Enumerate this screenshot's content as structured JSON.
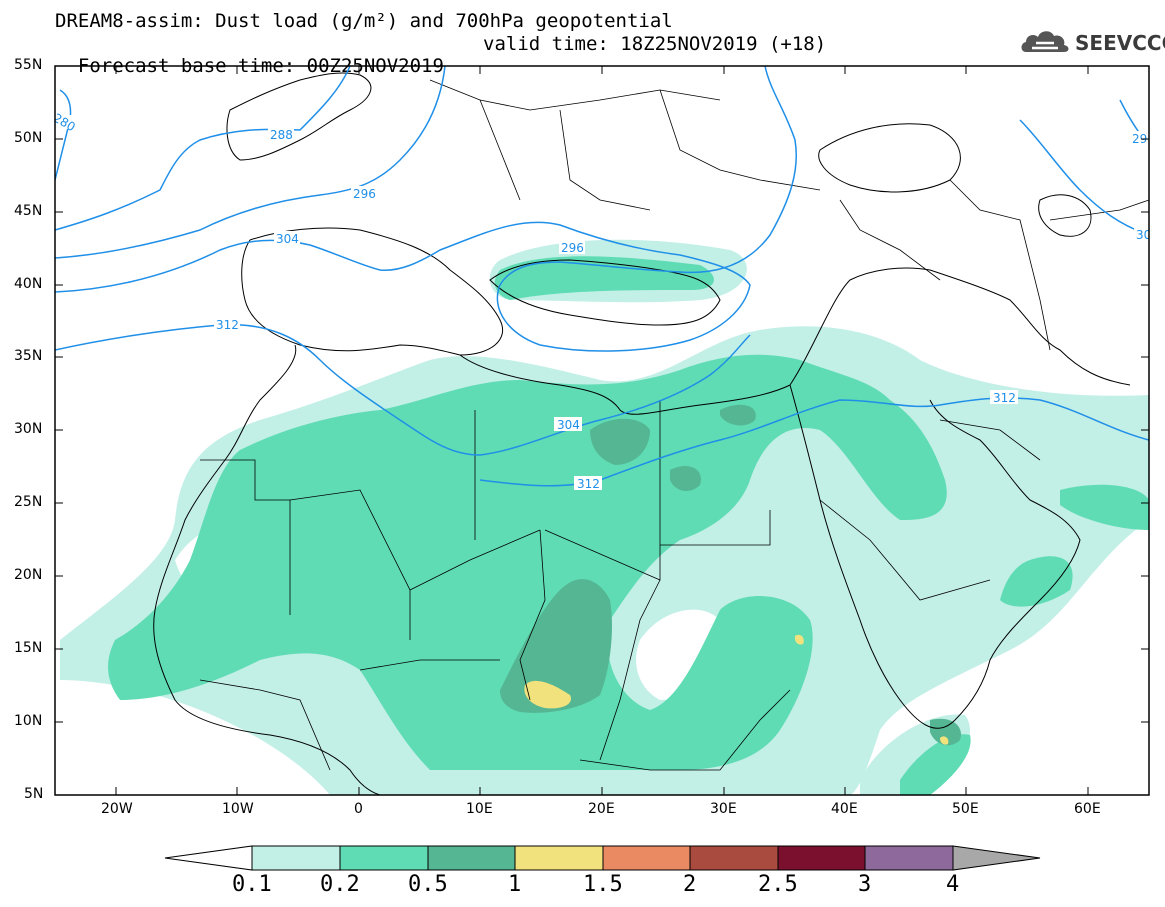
{
  "header": {
    "title": "DREAM8-assim: Dust load (g/m²) and 700hPa geopotential",
    "base_time": "Forecast base time: 00Z25NOV2019",
    "valid_time": "valid time: 18Z25NOV2019 (+18)"
  },
  "logo": {
    "text": "SEEVCCC",
    "icon": "cloud-icon"
  },
  "map": {
    "lon_range": [
      -25,
      65
    ],
    "lat_range": [
      5,
      55
    ],
    "lat_labels": [
      "55N",
      "50N",
      "45N",
      "40N",
      "35N",
      "30N",
      "25N",
      "20N",
      "15N",
      "10N",
      "5N"
    ],
    "lon_labels": [
      "20W",
      "10W",
      "0",
      "10E",
      "20E",
      "30E",
      "40E",
      "50E",
      "60E"
    ],
    "contour_labels": [
      "280",
      "288",
      "296",
      "304",
      "312",
      "296",
      "304",
      "312",
      "312",
      "29",
      "30"
    ]
  },
  "colorbar": {
    "labels": [
      "0.1",
      "0.2",
      "0.5",
      "1",
      "1.5",
      "2",
      "2.5",
      "3",
      "4"
    ],
    "colors": [
      "#c2efe6",
      "#5fdcb4",
      "#54b692",
      "#f2e27e",
      "#e98a63",
      "#a94b3e",
      "#7a0f2e",
      "#8e6a9c",
      "#a8a8a8"
    ],
    "under_color": "#ffffff",
    "over_color": "#a8a8a8"
  }
}
